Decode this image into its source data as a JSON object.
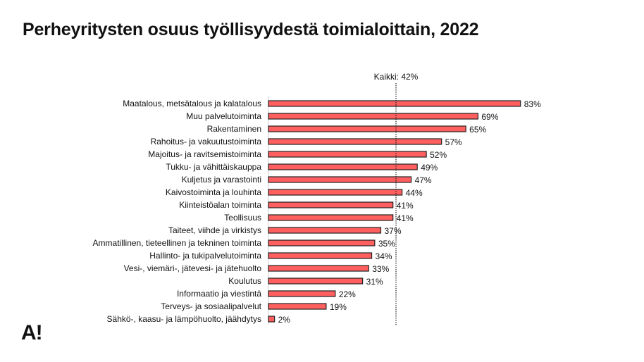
{
  "title": "Perheyritysten osuus työllisyydestä toimialoittain, 2022",
  "logo": "A!",
  "chart_data": {
    "type": "bar",
    "orientation": "horizontal",
    "categories": [
      "Maatalous, metsätalous ja kalatalous",
      "Muu palvelutoiminta",
      "Rakentaminen",
      "Rahoitus- ja vakuutustoiminta",
      "Majoitus- ja ravitsemistoiminta",
      "Tukku- ja vähittäiskauppa",
      "Kuljetus ja varastointi",
      "Kaivostoiminta ja louhinta",
      "Kiinteistöalan toiminta",
      "Teollisuus",
      "Taiteet, viihde ja virkistys",
      "Ammatillinen, tieteellinen ja tekninen toiminta",
      "Hallinto- ja tukipalvelutoiminta",
      "Vesi-, viemäri-, jätevesi- ja jätehuolto",
      "Koulutus",
      "Informaatio ja viestintä",
      "Terveys- ja sosiaalipalvelut",
      "Sähkö-, kaasu- ja lämpöhuolto, jäähdytys"
    ],
    "values": [
      83,
      69,
      65,
      57,
      52,
      49,
      47,
      44,
      41,
      41,
      37,
      35,
      34,
      33,
      31,
      22,
      19,
      2
    ],
    "data_labels": [
      "83%",
      "69%",
      "65%",
      "57%",
      "52%",
      "49%",
      "47%",
      "44%",
      "41%",
      "41%",
      "37%",
      "35%",
      "34%",
      "33%",
      "31%",
      "22%",
      "19%",
      "2%"
    ],
    "reference_line": {
      "value": 42,
      "label": "Kaikki: 42%",
      "style": "dotted"
    },
    "xlim": [
      0,
      100
    ],
    "bar_color": "#ff5f5f",
    "bar_edge_color": "#222222",
    "grid": false,
    "legend": "none"
  }
}
